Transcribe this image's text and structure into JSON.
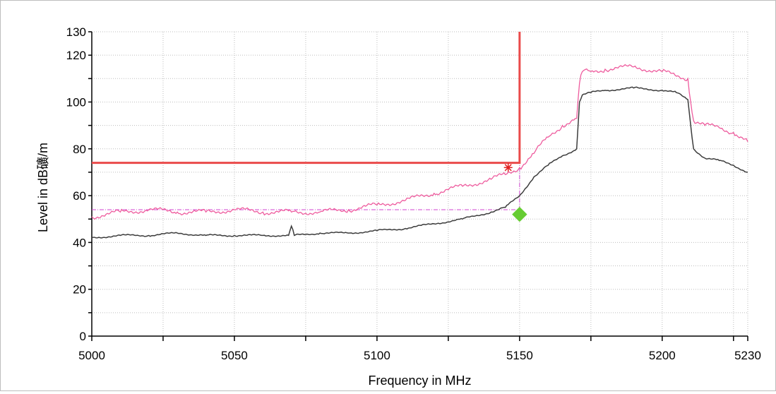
{
  "chart_data": {
    "type": "line",
    "title": "",
    "xlabel": "Frequency in MHz",
    "ylabel": "Level in dB礦/m",
    "xlim": [
      5000,
      5230
    ],
    "ylim": [
      0,
      130
    ],
    "x_ticks": [
      5000,
      5050,
      5100,
      5150,
      5200,
      5230
    ],
    "y_ticks": [
      0,
      20,
      40,
      60,
      80,
      100,
      120,
      130
    ],
    "grid": true,
    "legend": "none",
    "series": [
      {
        "color": "#ee5c9e",
        "x": [
          5000,
          5010,
          5020,
          5030,
          5040,
          5050,
          5060,
          5070,
          5080,
          5090,
          5100,
          5110,
          5120,
          5130,
          5140,
          5145,
          5150,
          5155,
          5160,
          5165,
          5170,
          5171,
          5172,
          5175,
          5180,
          5190,
          5200,
          5205,
          5209,
          5210,
          5211,
          5215,
          5220,
          5225,
          5230
        ],
        "values": [
          51,
          53,
          54,
          53,
          53,
          54,
          53,
          53,
          53,
          54,
          56,
          58,
          61,
          64,
          67,
          69,
          72,
          78,
          85,
          90,
          93,
          108,
          113,
          113,
          114,
          115,
          113,
          111,
          110,
          100,
          92,
          90,
          89,
          87,
          83
        ]
      },
      {
        "color": "#3c3c3c",
        "x": [
          5000,
          5010,
          5020,
          5030,
          5040,
          5050,
          5060,
          5069,
          5070,
          5071,
          5080,
          5090,
          5100,
          5110,
          5120,
          5130,
          5140,
          5145,
          5150,
          5155,
          5160,
          5165,
          5170,
          5171,
          5172,
          5175,
          5180,
          5190,
          5200,
          5205,
          5209,
          5210,
          5211,
          5215,
          5220,
          5225,
          5230
        ],
        "values": [
          42,
          43,
          43,
          44,
          43,
          43,
          43,
          43,
          47,
          43,
          44,
          44,
          45,
          46,
          48,
          50,
          53,
          55,
          60,
          68,
          73,
          77,
          80,
          100,
          103,
          104,
          105,
          106,
          105,
          104,
          101,
          90,
          80,
          76,
          75,
          73,
          70
        ]
      }
    ],
    "limit_line": {
      "color": "#ea4a4a",
      "x": [
        5000,
        5150,
        5150
      ],
      "values": [
        74,
        74,
        130
      ]
    },
    "average_limit_line": {
      "color": "#d045d0",
      "x": [
        5000,
        5150,
        5150
      ],
      "values": [
        54,
        54,
        74
      ]
    },
    "peak_marker": {
      "color": "#e02020",
      "x": 5146,
      "value": 72
    },
    "average_marker": {
      "color": "#66cc33",
      "x": 5150,
      "value": 52
    }
  }
}
